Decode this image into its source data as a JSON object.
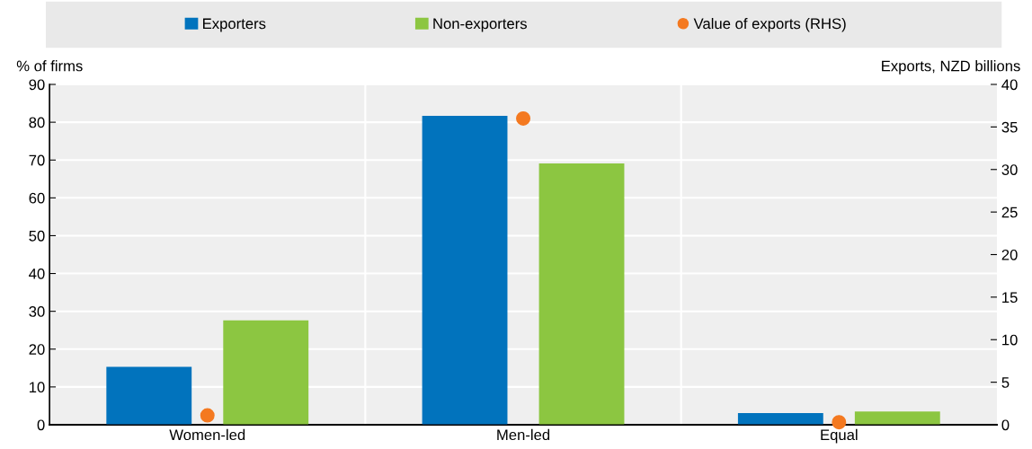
{
  "chart_data": {
    "type": "bar",
    "categories": [
      "Women-led",
      "Men-led",
      "Equal"
    ],
    "series": [
      {
        "name": "Exporters",
        "color": "#0173bd",
        "values": [
          15.3,
          81.7,
          3.1
        ]
      },
      {
        "name": "Non-exporters",
        "color": "#8cc641",
        "values": [
          27.6,
          69.1,
          3.5
        ]
      },
      {
        "name": "Value of exports (RHS)",
        "type": "scatter",
        "axis": "y2",
        "color": "#f47920",
        "values": [
          1.1,
          36.0,
          0.3
        ]
      }
    ],
    "ylabel": "% of firms",
    "y2label": "Exports, NZD billions",
    "ylim": [
      0,
      90
    ],
    "yticks": [
      0,
      10,
      20,
      30,
      40,
      50,
      60,
      70,
      80,
      90
    ],
    "y2lim": [
      0,
      40
    ],
    "y2ticks": [
      0,
      5,
      10,
      15,
      20,
      25,
      30,
      35,
      40
    ],
    "grid": true,
    "legend": "top",
    "marker": "circle"
  }
}
